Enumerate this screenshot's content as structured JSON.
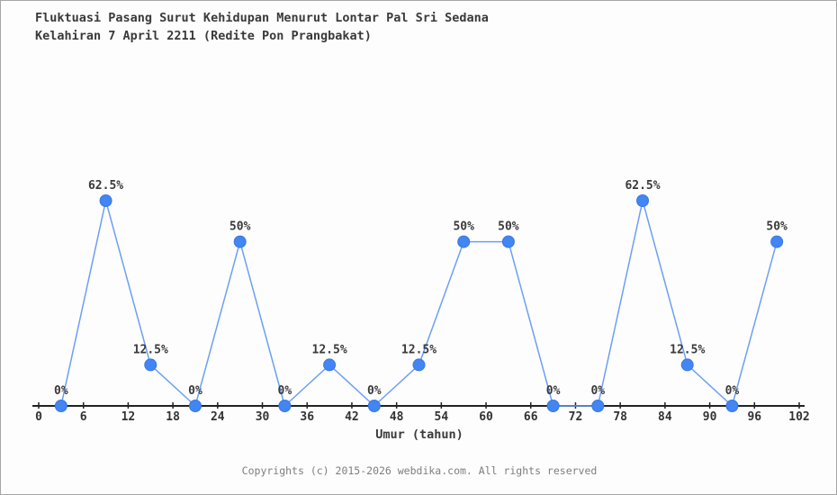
{
  "title": {
    "line1": "Fluktuasi Pasang Surut Kehidupan Menurut Lontar Pal Sri Sedana",
    "line2": "Kelahiran 7 April 2211 (Redite Pon Prangbakat)"
  },
  "footer": {
    "copyright": "Copyrights (c) 2015-2026 webdika.com. All rights reserved"
  },
  "chart_data": {
    "type": "line",
    "title": "Fluktuasi Pasang Surut Kehidupan Menurut Lontar Pal Sri Sedana Kelahiran 7 April 2211 (Redite Pon Prangbakat)",
    "xlabel": "Umur (tahun)",
    "ylabel": "",
    "x": [
      3,
      9,
      15,
      21,
      27,
      33,
      39,
      45,
      51,
      57,
      63,
      69,
      75,
      81,
      87,
      93,
      99
    ],
    "values": [
      0,
      62.5,
      12.5,
      0,
      50,
      0,
      12.5,
      0,
      12.5,
      50,
      50,
      0,
      0,
      62.5,
      12.5,
      0,
      50
    ],
    "point_labels": [
      "0%",
      "62.5%",
      "12.5%",
      "0%",
      "50%",
      "0%",
      "12.5%",
      "0%",
      "12.5%",
      "50%",
      "50%",
      "0%",
      "0%",
      "62.5%",
      "12.5%",
      "0%",
      "50%"
    ],
    "x_ticks": [
      0,
      6,
      12,
      18,
      24,
      30,
      36,
      42,
      48,
      54,
      60,
      66,
      72,
      78,
      84,
      90,
      96,
      102
    ],
    "xlim": [
      0,
      102
    ],
    "ylim": [
      0,
      100
    ],
    "grid": false,
    "legend": null,
    "colors": {
      "marker_fill": "#4285f4",
      "marker_stroke": "#3a78e0",
      "line": "#6c9ff5",
      "axis": "#222222",
      "tick_label": "#333333",
      "point_label": "#3a3a3a",
      "background": "#fdfdfd"
    }
  }
}
